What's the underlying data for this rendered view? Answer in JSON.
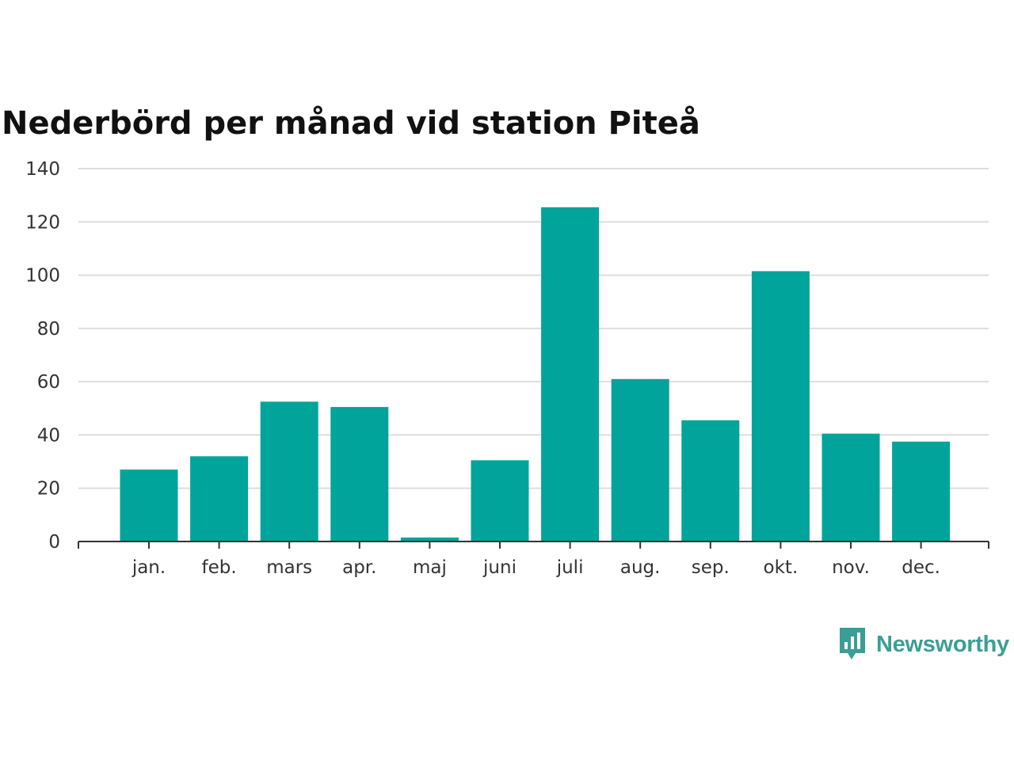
{
  "chart_data": {
    "type": "bar",
    "title": "Nederbörd per månad vid station Piteå",
    "categories": [
      "jan.",
      "feb.",
      "mars",
      "apr.",
      "maj",
      "juni",
      "juli",
      "aug.",
      "sep.",
      "okt.",
      "nov.",
      "dec."
    ],
    "values": [
      27,
      32,
      52.5,
      50.5,
      1.5,
      30.5,
      125.5,
      61,
      45.5,
      101.5,
      40.5,
      37.5
    ],
    "yticks": [
      0,
      20,
      40,
      60,
      80,
      100,
      120,
      140
    ],
    "ylim": [
      0,
      140
    ],
    "xlabel": "",
    "ylabel": "",
    "grid": true,
    "bar_color": "#00a49a",
    "grid_color": "#dddddd",
    "axis_color": "#333333"
  },
  "brand": {
    "name": "Newsworthy",
    "icon": "newsworthy-chart-icon",
    "color": "#3a9e96"
  }
}
